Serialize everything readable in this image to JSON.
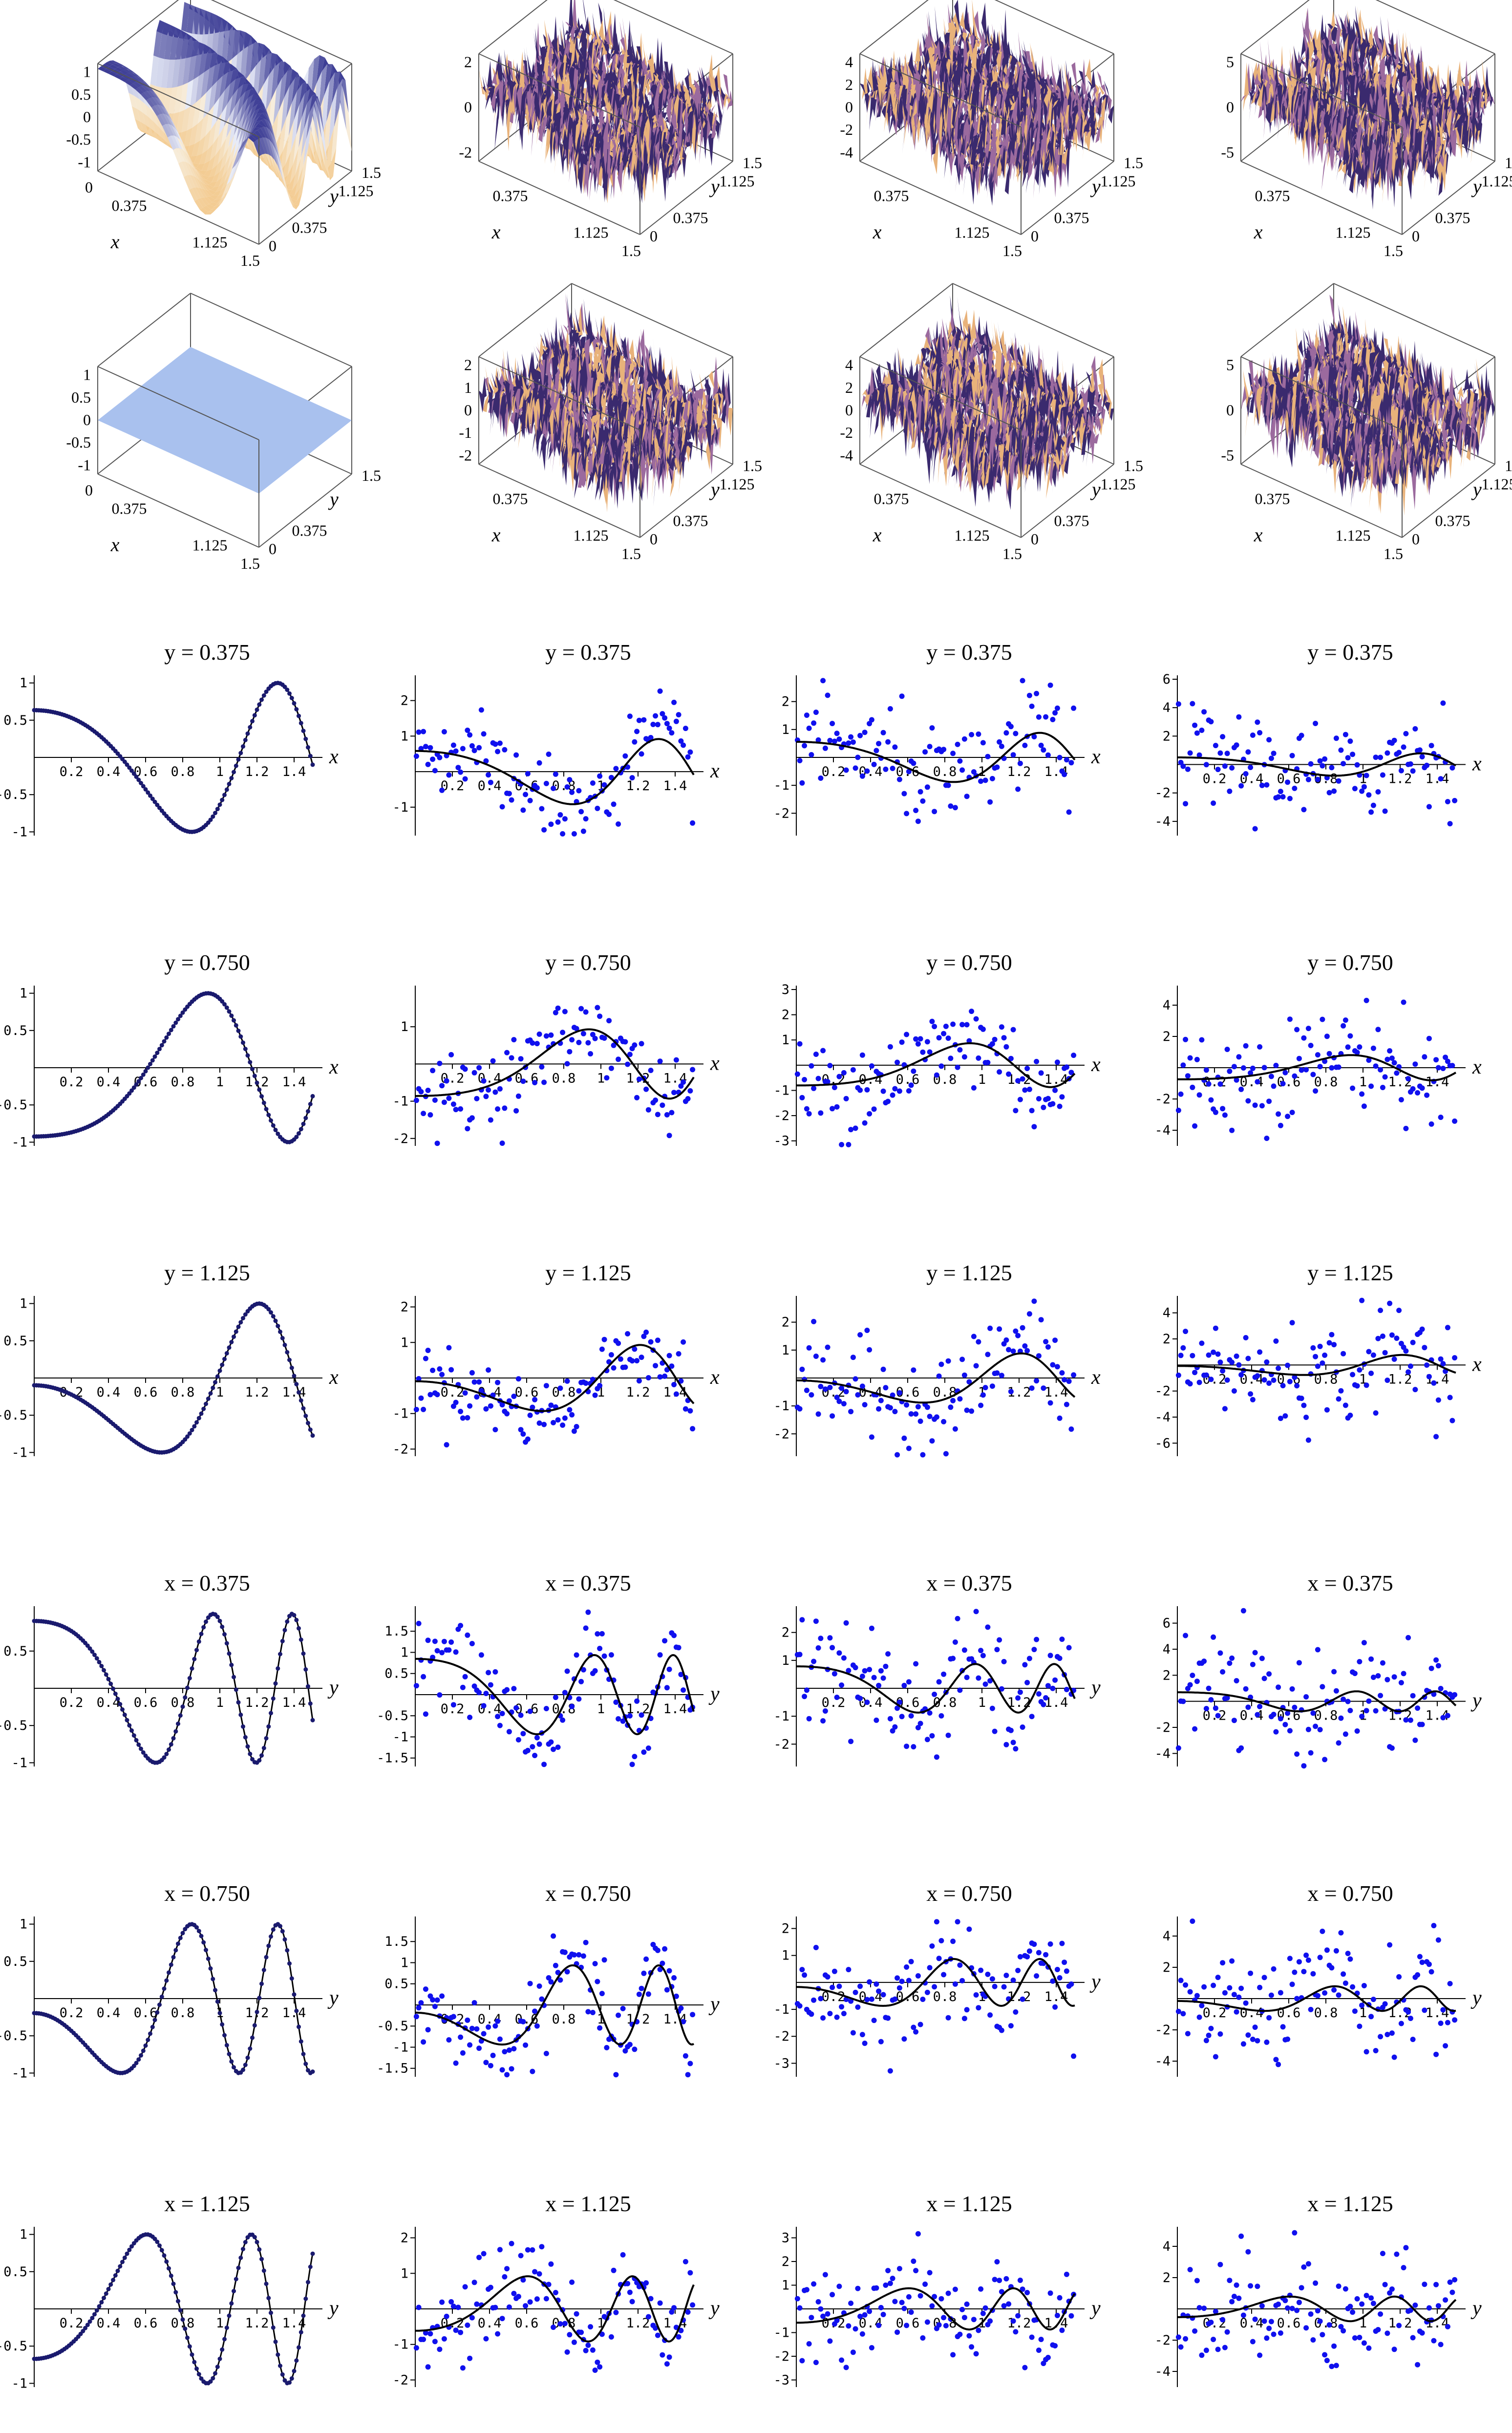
{
  "surfaces": [
    {
      "row": 1,
      "col": 1,
      "type": "surface",
      "style": "smooth",
      "zticks": [
        "1",
        "0.5",
        "0",
        "-0.5",
        "-1"
      ],
      "xticks": [
        "0",
        "0.375",
        "1.125",
        "1.5"
      ],
      "yticks": [
        "0",
        "0.375",
        "1.125",
        "1.5"
      ],
      "xlabel": "x",
      "ylabel": "y"
    },
    {
      "row": 1,
      "col": 2,
      "type": "surface",
      "style": "noisy",
      "zticks": [
        "2",
        "0",
        "-2"
      ],
      "xticks": [
        "0.375",
        "1.125",
        "1.5"
      ],
      "yticks": [
        "0",
        "0.375",
        "1.125",
        "1.5"
      ],
      "xlabel": "x",
      "ylabel": "y"
    },
    {
      "row": 1,
      "col": 3,
      "type": "surface",
      "style": "noisy",
      "zticks": [
        "4",
        "2",
        "0",
        "-2",
        "-4"
      ],
      "xticks": [
        "0.375",
        "1.125",
        "1.5"
      ],
      "yticks": [
        "0",
        "0.375",
        "1.125",
        "1.5"
      ],
      "xlabel": "x",
      "ylabel": "y"
    },
    {
      "row": 1,
      "col": 4,
      "type": "surface",
      "style": "noisy",
      "zticks": [
        "5",
        "0",
        "-5"
      ],
      "xticks": [
        "0.375",
        "1.125",
        "1.5"
      ],
      "yticks": [
        "0",
        "0.375",
        "1.125",
        "1.5"
      ],
      "xlabel": "x",
      "ylabel": "y"
    },
    {
      "row": 2,
      "col": 1,
      "type": "surface",
      "style": "flat",
      "zticks": [
        "1",
        "0.5",
        "0",
        "-0.5",
        "-1"
      ],
      "xticks": [
        "0",
        "0.375",
        "1.125",
        "1.5"
      ],
      "yticks": [
        "0",
        "0.375",
        "1.5"
      ],
      "xlabel": "x",
      "ylabel": "y"
    },
    {
      "row": 2,
      "col": 2,
      "type": "surface",
      "style": "noisy",
      "zticks": [
        "2",
        "1",
        "0",
        "-1",
        "-2"
      ],
      "xticks": [
        "0.375",
        "1.125",
        "1.5"
      ],
      "yticks": [
        "0",
        "0.375",
        "1.125",
        "1.5"
      ],
      "xlabel": "x",
      "ylabel": "y"
    },
    {
      "row": 2,
      "col": 3,
      "type": "surface",
      "style": "noisy",
      "zticks": [
        "4",
        "2",
        "0",
        "-2",
        "-4"
      ],
      "xticks": [
        "0.375",
        "1.125",
        "1.5"
      ],
      "yticks": [
        "0",
        "0.375",
        "1.125",
        "1.5"
      ],
      "xlabel": "x",
      "ylabel": "y"
    },
    {
      "row": 2,
      "col": 4,
      "type": "surface",
      "style": "noisy",
      "zticks": [
        "5",
        "0",
        "-5"
      ],
      "xticks": [
        "0.375",
        "1.125",
        "1.5"
      ],
      "yticks": [
        "0",
        "0.375",
        "1.125",
        "1.5"
      ],
      "xlabel": "x",
      "ylabel": "y"
    }
  ],
  "chart_data": [
    {
      "type": "line",
      "title": "y = 0.375",
      "xlabel": "x",
      "cut": "y",
      "value": 0.375,
      "noise": 0,
      "ylim": [
        -1.05,
        1.05
      ],
      "yticks": [
        {
          "v": 1,
          "t": "1"
        },
        {
          "v": 0.5,
          "t": "0.5"
        },
        {
          "v": -0.5,
          "t": "-0.5"
        },
        {
          "v": -1,
          "t": "-1"
        }
      ],
      "xticks": [
        "0.2",
        "0.4",
        "0.6",
        "0.8",
        "1",
        "1.2",
        "1.4"
      ]
    },
    {
      "type": "scatter",
      "title": "y = 0.375",
      "xlabel": "x",
      "cut": "y",
      "value": 0.375,
      "noise": 0.6,
      "ylim": [
        -1.8,
        2.6
      ],
      "yticks": [
        {
          "v": 2,
          "t": "2"
        },
        {
          "v": 1,
          "t": "1"
        },
        {
          "v": -1,
          "t": "-1"
        }
      ],
      "xticks": [
        "0.2",
        "0.4",
        "0.6",
        "0.8",
        "1",
        "1.2",
        "1.4"
      ]
    },
    {
      "type": "scatter",
      "title": "y = 0.375",
      "xlabel": "x",
      "cut": "y",
      "value": 0.375,
      "noise": 0.9,
      "ylim": [
        -2.8,
        2.8
      ],
      "yticks": [
        {
          "v": 2,
          "t": "2"
        },
        {
          "v": 1,
          "t": "1"
        },
        {
          "v": -1,
          "t": "-1"
        },
        {
          "v": -2,
          "t": "-2"
        }
      ],
      "xticks": [
        "0.2",
        "0.4",
        "0.6",
        "0.8",
        "1",
        "1.2",
        "1.4"
      ]
    },
    {
      "type": "scatter",
      "title": "y = 0.375",
      "xlabel": "x",
      "cut": "y",
      "value": 0.375,
      "noise": 1.8,
      "ylim": [
        -5,
        6
      ],
      "yticks": [
        {
          "v": 6,
          "t": "6"
        },
        {
          "v": 4,
          "t": "4"
        },
        {
          "v": 2,
          "t": "2"
        },
        {
          "v": -2,
          "t": "-2"
        },
        {
          "v": -4,
          "t": "-4"
        }
      ],
      "xticks": [
        "0.2",
        "0.4",
        "0.6",
        "0.8",
        "1",
        "1.2",
        "1.4"
      ]
    },
    {
      "type": "line",
      "title": "y = 0.750",
      "xlabel": "x",
      "cut": "y",
      "value": 0.75,
      "noise": 0,
      "ylim": [
        -1.05,
        1.05
      ],
      "yticks": [
        {
          "v": 1,
          "t": "1"
        },
        {
          "v": 0.5,
          "t": "0.5"
        },
        {
          "v": -0.5,
          "t": "-0.5"
        },
        {
          "v": -1,
          "t": "-1"
        }
      ],
      "xticks": [
        "0.2",
        "0.4",
        "0.6",
        "0.8",
        "1",
        "1.2",
        "1.4"
      ]
    },
    {
      "type": "scatter",
      "title": "y = 0.750",
      "xlabel": "x",
      "cut": "y",
      "value": 0.75,
      "noise": 0.5,
      "ylim": [
        -2.2,
        2
      ],
      "yticks": [
        {
          "v": 1,
          "t": "1"
        },
        {
          "v": -1,
          "t": "-1"
        },
        {
          "v": -2,
          "t": "-2"
        }
      ],
      "xticks": [
        "0.2",
        "0.4",
        "0.6",
        "0.8",
        "1",
        "1.2",
        "1.4"
      ]
    },
    {
      "type": "scatter",
      "title": "y = 0.750",
      "xlabel": "x",
      "cut": "y",
      "value": 0.75,
      "noise": 1.0,
      "ylim": [
        -3.2,
        3
      ],
      "yticks": [
        {
          "v": 3,
          "t": "3"
        },
        {
          "v": 2,
          "t": "2"
        },
        {
          "v": 1,
          "t": "1"
        },
        {
          "v": -1,
          "t": "-1"
        },
        {
          "v": -2,
          "t": "-2"
        },
        {
          "v": -3,
          "t": "-3"
        }
      ],
      "xticks": [
        "0.2",
        "0.4",
        "0.6",
        "0.8",
        "1",
        "1.2",
        "1.4"
      ]
    },
    {
      "type": "scatter",
      "title": "y = 0.750",
      "xlabel": "x",
      "cut": "y",
      "value": 0.75,
      "noise": 1.6,
      "ylim": [
        -5,
        5
      ],
      "yticks": [
        {
          "v": 4,
          "t": "4"
        },
        {
          "v": 2,
          "t": "2"
        },
        {
          "v": -2,
          "t": "-2"
        },
        {
          "v": -4,
          "t": "-4"
        }
      ],
      "xticks": [
        "0.2",
        "0.4",
        "0.6",
        "0.8",
        "1",
        "1.2",
        "1.4"
      ]
    },
    {
      "type": "line",
      "title": "y = 1.125",
      "xlabel": "x",
      "cut": "y",
      "value": 1.125,
      "noise": 0,
      "ylim": [
        -1.05,
        1.05
      ],
      "yticks": [
        {
          "v": 1,
          "t": "1"
        },
        {
          "v": 0.5,
          "t": "0.5"
        },
        {
          "v": -0.5,
          "t": "-0.5"
        },
        {
          "v": -1,
          "t": "-1"
        }
      ],
      "xticks": [
        "0.2",
        "0.4",
        "0.6",
        "0.8",
        "1",
        "1.2",
        "1.4"
      ]
    },
    {
      "type": "scatter",
      "title": "y = 1.125",
      "xlabel": "x",
      "cut": "y",
      "value": 1.125,
      "noise": 0.5,
      "ylim": [
        -2.2,
        2.2
      ],
      "yticks": [
        {
          "v": 2,
          "t": "2"
        },
        {
          "v": 1,
          "t": "1"
        },
        {
          "v": -1,
          "t": "-1"
        },
        {
          "v": -2,
          "t": "-2"
        }
      ],
      "xticks": [
        "0.2",
        "0.4",
        "0.6",
        "0.8",
        "1",
        "1.2",
        "1.4"
      ]
    },
    {
      "type": "scatter",
      "title": "y = 1.125",
      "xlabel": "x",
      "cut": "y",
      "value": 1.125,
      "noise": 0.9,
      "ylim": [
        -2.8,
        2.8
      ],
      "yticks": [
        {
          "v": 2,
          "t": "2"
        },
        {
          "v": 1,
          "t": "1"
        },
        {
          "v": -1,
          "t": "-1"
        },
        {
          "v": -2,
          "t": "-2"
        }
      ],
      "xticks": [
        "0.2",
        "0.4",
        "0.6",
        "0.8",
        "1",
        "1.2",
        "1.4"
      ]
    },
    {
      "type": "scatter",
      "title": "y = 1.125",
      "xlabel": "x",
      "cut": "y",
      "value": 1.125,
      "noise": 2.0,
      "ylim": [
        -7,
        5
      ],
      "yticks": [
        {
          "v": 4,
          "t": "4"
        },
        {
          "v": 2,
          "t": "2"
        },
        {
          "v": -2,
          "t": "-2"
        },
        {
          "v": -4,
          "t": "-4"
        },
        {
          "v": -6,
          "t": "-6"
        }
      ],
      "xticks": [
        "0.2",
        "0.4",
        "0.6",
        "0.8",
        "1",
        "1.2",
        "1.4"
      ]
    },
    {
      "type": "line",
      "title": "x = 0.375",
      "xlabel": "y",
      "cut": "x",
      "value": 0.375,
      "noise": 0,
      "ylim": [
        -1.05,
        1.05
      ],
      "yticks": [
        {
          "v": 0.5,
          "t": "0.5"
        },
        {
          "v": -0.5,
          "t": "-0.5"
        },
        {
          "v": -1,
          "t": "-1"
        }
      ],
      "xticks": [
        "0.2",
        "0.4",
        "0.6",
        "0.8",
        "1",
        "1.2",
        "1.4"
      ]
    },
    {
      "type": "scatter",
      "title": "x = 0.375",
      "xlabel": "y",
      "cut": "x",
      "value": 0.375,
      "noise": 0.45,
      "ylim": [
        -1.7,
        2
      ],
      "yticks": [
        {
          "v": 1.5,
          "t": "1.5"
        },
        {
          "v": 1,
          "t": "1"
        },
        {
          "v": 0.5,
          "t": "0.5"
        },
        {
          "v": -0.5,
          "t": "-0.5"
        },
        {
          "v": -1,
          "t": "-1"
        },
        {
          "v": -1.5,
          "t": "-1.5"
        }
      ],
      "xticks": [
        "0.2",
        "0.4",
        "0.6",
        "0.8",
        "1",
        "1.2",
        "1.4"
      ]
    },
    {
      "type": "scatter",
      "title": "x = 0.375",
      "xlabel": "y",
      "cut": "x",
      "value": 0.375,
      "noise": 1.0,
      "ylim": [
        -2.8,
        2.8
      ],
      "yticks": [
        {
          "v": 2,
          "t": "2"
        },
        {
          "v": 1,
          "t": "1"
        },
        {
          "v": -1,
          "t": "-1"
        },
        {
          "v": -2,
          "t": "-2"
        }
      ],
      "xticks": [
        "0.2",
        "0.4",
        "0.6",
        "0.8",
        "1",
        "1.2",
        "1.4"
      ]
    },
    {
      "type": "scatter",
      "title": "x = 0.375",
      "xlabel": "y",
      "cut": "x",
      "value": 0.375,
      "noise": 2.0,
      "ylim": [
        -5,
        7
      ],
      "yticks": [
        {
          "v": 6,
          "t": "6"
        },
        {
          "v": 4,
          "t": "4"
        },
        {
          "v": 2,
          "t": "2"
        },
        {
          "v": -2,
          "t": "-2"
        },
        {
          "v": -4,
          "t": "-4"
        }
      ],
      "xticks": [
        "0.2",
        "0.4",
        "0.6",
        "0.8",
        "1",
        "1.2",
        "1.4"
      ]
    },
    {
      "type": "line",
      "title": "x = 0.750",
      "xlabel": "y",
      "cut": "x",
      "value": 0.75,
      "noise": 0,
      "ylim": [
        -1.05,
        1.05
      ],
      "yticks": [
        {
          "v": 1,
          "t": "1"
        },
        {
          "v": 0.5,
          "t": "0.5"
        },
        {
          "v": -0.5,
          "t": "-0.5"
        },
        {
          "v": -1,
          "t": "-1"
        }
      ],
      "xticks": [
        "0.2",
        "0.4",
        "0.6",
        "0.8",
        "1",
        "1.2",
        "1.4"
      ]
    },
    {
      "type": "scatter",
      "title": "x = 0.750",
      "xlabel": "y",
      "cut": "x",
      "value": 0.75,
      "noise": 0.45,
      "ylim": [
        -1.7,
        2
      ],
      "yticks": [
        {
          "v": 1.5,
          "t": "1.5"
        },
        {
          "v": 1,
          "t": "1"
        },
        {
          "v": 0.5,
          "t": "0.5"
        },
        {
          "v": -0.5,
          "t": "-0.5"
        },
        {
          "v": -1,
          "t": "-1"
        },
        {
          "v": -1.5,
          "t": "-1.5"
        }
      ],
      "xticks": [
        "0.2",
        "0.4",
        "0.6",
        "0.8",
        "1",
        "1.2",
        "1.4"
      ]
    },
    {
      "type": "scatter",
      "title": "x = 0.750",
      "xlabel": "y",
      "cut": "x",
      "value": 0.75,
      "noise": 1.0,
      "ylim": [
        -3.5,
        2.3
      ],
      "yticks": [
        {
          "v": 2,
          "t": "2"
        },
        {
          "v": 1,
          "t": "1"
        },
        {
          "v": -1,
          "t": "-1"
        },
        {
          "v": -2,
          "t": "-2"
        },
        {
          "v": -3,
          "t": "-3"
        }
      ],
      "xticks": [
        "0.2",
        "0.4",
        "0.6",
        "0.8",
        "1",
        "1.2",
        "1.4"
      ]
    },
    {
      "type": "scatter",
      "title": "x = 0.750",
      "xlabel": "y",
      "cut": "x",
      "value": 0.75,
      "noise": 1.8,
      "ylim": [
        -5,
        5
      ],
      "yticks": [
        {
          "v": 4,
          "t": "4"
        },
        {
          "v": 2,
          "t": "2"
        },
        {
          "v": -2,
          "t": "-2"
        },
        {
          "v": -4,
          "t": "-4"
        }
      ],
      "xticks": [
        "0.2",
        "0.4",
        "0.6",
        "0.8",
        "1",
        "1.2",
        "1.4"
      ]
    },
    {
      "type": "line",
      "title": "x = 1.125",
      "xlabel": "y",
      "cut": "x",
      "value": 1.125,
      "noise": 0,
      "ylim": [
        -1.05,
        1.05
      ],
      "yticks": [
        {
          "v": 1,
          "t": "1"
        },
        {
          "v": 0.5,
          "t": "0.5"
        },
        {
          "v": -0.5,
          "t": "-0.5"
        },
        {
          "v": -1,
          "t": "-1"
        }
      ],
      "xticks": [
        "0.2",
        "0.4",
        "0.6",
        "0.8",
        "1",
        "1.2",
        "1.4"
      ]
    },
    {
      "type": "scatter",
      "title": "x = 1.125",
      "xlabel": "y",
      "cut": "x",
      "value": 1.125,
      "noise": 0.6,
      "ylim": [
        -2.2,
        2.2
      ],
      "yticks": [
        {
          "v": 2,
          "t": "2"
        },
        {
          "v": 1,
          "t": "1"
        },
        {
          "v": -1,
          "t": "-1"
        },
        {
          "v": -2,
          "t": "-2"
        }
      ],
      "xticks": [
        "0.2",
        "0.4",
        "0.6",
        "0.8",
        "1",
        "1.2",
        "1.4"
      ]
    },
    {
      "type": "scatter",
      "title": "x = 1.125",
      "xlabel": "y",
      "cut": "x",
      "value": 1.125,
      "noise": 1.0,
      "ylim": [
        -3.3,
        3.3
      ],
      "yticks": [
        {
          "v": 3,
          "t": "3"
        },
        {
          "v": 2,
          "t": "2"
        },
        {
          "v": 1,
          "t": "1"
        },
        {
          "v": -1,
          "t": "-1"
        },
        {
          "v": -2,
          "t": "-2"
        },
        {
          "v": -3,
          "t": "-3"
        }
      ],
      "xticks": [
        "0.2",
        "0.4",
        "0.6",
        "0.8",
        "1",
        "1.2",
        "1.4"
      ]
    },
    {
      "type": "scatter",
      "title": "x = 1.125",
      "xlabel": "y",
      "cut": "x",
      "value": 1.125,
      "noise": 1.8,
      "ylim": [
        -5,
        5
      ],
      "yticks": [
        {
          "v": 4,
          "t": "4"
        },
        {
          "v": 2,
          "t": "2"
        },
        {
          "v": -2,
          "t": "-2"
        },
        {
          "v": -4,
          "t": "-4"
        }
      ],
      "xticks": [
        "0.2",
        "0.4",
        "0.6",
        "0.8",
        "1",
        "1.2",
        "1.4"
      ]
    }
  ],
  "colors": {
    "scatter_points": "#1010ee",
    "line_only_points": "#1a1a6e",
    "curve": "#000000",
    "flat_surface": "#a9c1ee",
    "smooth_surface_light": "#f3c88a",
    "smooth_surface_dark": "#2a2a8a",
    "noise_dark": "#3a2a6e",
    "noise_mid": "#9b6a9e",
    "noise_light": "#e8b27a"
  }
}
